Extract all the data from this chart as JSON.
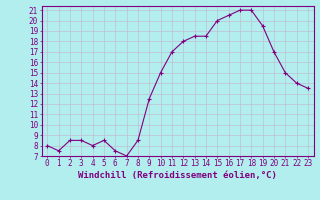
{
  "x": [
    0,
    1,
    2,
    3,
    4,
    5,
    6,
    7,
    8,
    9,
    10,
    11,
    12,
    13,
    14,
    15,
    16,
    17,
    18,
    19,
    20,
    21,
    22,
    23
  ],
  "y": [
    8,
    7.5,
    8.5,
    8.5,
    8,
    8.5,
    7.5,
    7,
    8.5,
    12.5,
    15,
    17,
    18,
    18.5,
    18.5,
    20,
    20.5,
    21,
    21,
    19.5,
    17,
    15,
    14,
    13.5
  ],
  "line_color": "#800080",
  "marker_color": "#800080",
  "bg_color": "#b2eeee",
  "grid_color": "#c0c0d0",
  "title": "",
  "xlabel": "Windchill (Refroidissement éolien,°C)",
  "ylabel": "",
  "xlim": [
    -0.5,
    23.5
  ],
  "ylim": [
    7,
    21.4
  ],
  "yticks": [
    7,
    8,
    9,
    10,
    11,
    12,
    13,
    14,
    15,
    16,
    17,
    18,
    19,
    20,
    21
  ],
  "xticks": [
    0,
    1,
    2,
    3,
    4,
    5,
    6,
    7,
    8,
    9,
    10,
    11,
    12,
    13,
    14,
    15,
    16,
    17,
    18,
    19,
    20,
    21,
    22,
    23
  ],
  "tick_color": "#800080",
  "tick_fontsize": 5.5,
  "xlabel_fontsize": 6.5,
  "axis_label_color": "#800080",
  "spine_color": "#800080",
  "marker_size": 2.5,
  "line_width": 0.8
}
